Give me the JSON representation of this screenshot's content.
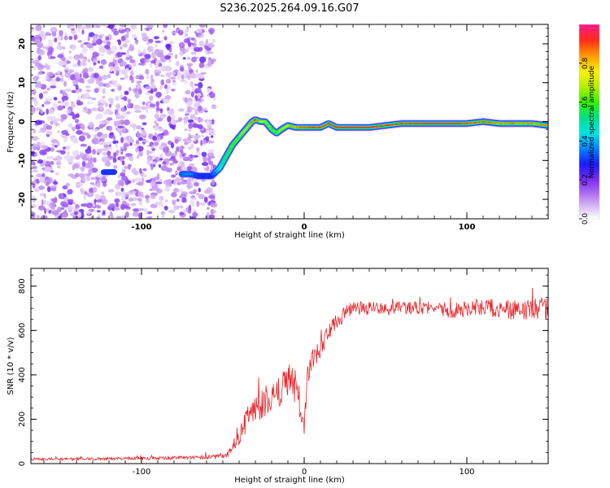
{
  "title": "S236.2025.264.09.16.G07",
  "chart_data": [
    {
      "type": "heatmap",
      "panel": "spectrogram",
      "xlabel": "Height of straight line (km)",
      "ylabel": "Frequency (Hz)",
      "xlim": [
        -168,
        150
      ],
      "ylim": [
        -25,
        25
      ],
      "x_ticks": [
        -100,
        0,
        100
      ],
      "x_tick_labels": [
        "-100",
        "0",
        "100"
      ],
      "y_ticks": [
        20,
        10,
        0,
        -10,
        -20
      ],
      "y_tick_labels": [
        "20",
        "10",
        "0",
        "-10",
        "-20"
      ],
      "colorbar": {
        "label": "Normalized spectral amplitude",
        "range": [
          0,
          1
        ],
        "ticks": [
          0.0,
          0.2,
          0.4,
          0.6,
          0.8
        ],
        "tick_labels": [
          "0.0",
          "0.2",
          "0.4",
          "0.6",
          "0.8"
        ]
      },
      "noise_region_x": [
        -168,
        -57
      ],
      "signal_ridge": {
        "x": [
          -75,
          -70,
          -65,
          -60,
          -57,
          -52,
          -48,
          -44,
          -40,
          -36,
          -32,
          -30,
          -27,
          -24,
          -20,
          -17,
          -14,
          -10,
          -5,
          0,
          5,
          10,
          15,
          20,
          30,
          40,
          50,
          60,
          70,
          80,
          90,
          100,
          110,
          120,
          130,
          140,
          150
        ],
        "y": [
          -13.5,
          -13.5,
          -14,
          -14,
          -14,
          -12,
          -9,
          -6,
          -4,
          -2,
          0,
          0.5,
          0,
          0,
          -2,
          -3,
          -2,
          -1,
          -1.5,
          -1.5,
          -1.5,
          -1.5,
          -0.5,
          -1.5,
          -1.5,
          -1.5,
          -1,
          -0.5,
          -0.5,
          -0.5,
          -0.5,
          -0.5,
          0,
          -0.5,
          -0.5,
          -0.5,
          -1
        ],
        "amp": [
          0.35,
          0.35,
          0.3,
          0.3,
          0.3,
          0.45,
          0.55,
          0.6,
          0.65,
          0.75,
          0.85,
          0.9,
          0.8,
          0.65,
          0.6,
          0.6,
          0.7,
          0.8,
          0.85,
          0.9,
          0.92,
          0.92,
          0.9,
          0.95,
          0.95,
          0.95,
          0.9,
          0.9,
          0.92,
          0.95,
          0.95,
          0.9,
          0.88,
          0.85,
          0.85,
          0.85,
          0.85
        ]
      },
      "secondary_blob": {
        "x": [
          -123,
          -117
        ],
        "y": -13
      }
    },
    {
      "type": "line",
      "panel": "snr",
      "xlabel": "Height of straight line (km)",
      "ylabel": "SNR (10 * v/v)",
      "xlim": [
        -168,
        150
      ],
      "ylim": [
        0,
        880
      ],
      "x_ticks": [
        -100,
        0,
        100
      ],
      "x_tick_labels": [
        "-100",
        "0",
        "100"
      ],
      "y_ticks": [
        0,
        200,
        400,
        600,
        800
      ],
      "y_tick_labels": [
        "0",
        "200",
        "400",
        "600",
        "800"
      ],
      "color": "#e8262a",
      "series": [
        {
          "name": "SNR",
          "x": [
            -168,
            -120,
            -80,
            -60,
            -50,
            -45,
            -42,
            -40,
            -38,
            -35,
            -30,
            -25,
            -20,
            -15,
            -12,
            -10,
            -8,
            -5,
            -3,
            -2,
            0,
            2,
            5,
            8,
            10,
            15,
            20,
            25,
            30,
            40,
            50,
            60,
            70,
            80,
            90,
            100,
            110,
            120,
            130,
            140,
            150
          ],
          "y": [
            20,
            22,
            25,
            30,
            35,
            60,
            100,
            110,
            150,
            200,
            240,
            270,
            310,
            330,
            360,
            370,
            380,
            330,
            200,
            180,
            170,
            400,
            470,
            500,
            520,
            590,
            640,
            680,
            700,
            700,
            700,
            700,
            700,
            700,
            690,
            700,
            700,
            700,
            690,
            700,
            700
          ],
          "noise_amplitude": [
            6,
            6,
            8,
            10,
            15,
            30,
            40,
            45,
            50,
            55,
            60,
            65,
            70,
            70,
            70,
            70,
            80,
            90,
            60,
            50,
            40,
            50,
            50,
            50,
            45,
            40,
            40,
            35,
            30,
            30,
            30,
            30,
            30,
            30,
            35,
            35,
            40,
            45,
            45,
            50,
            50
          ]
        }
      ]
    }
  ]
}
